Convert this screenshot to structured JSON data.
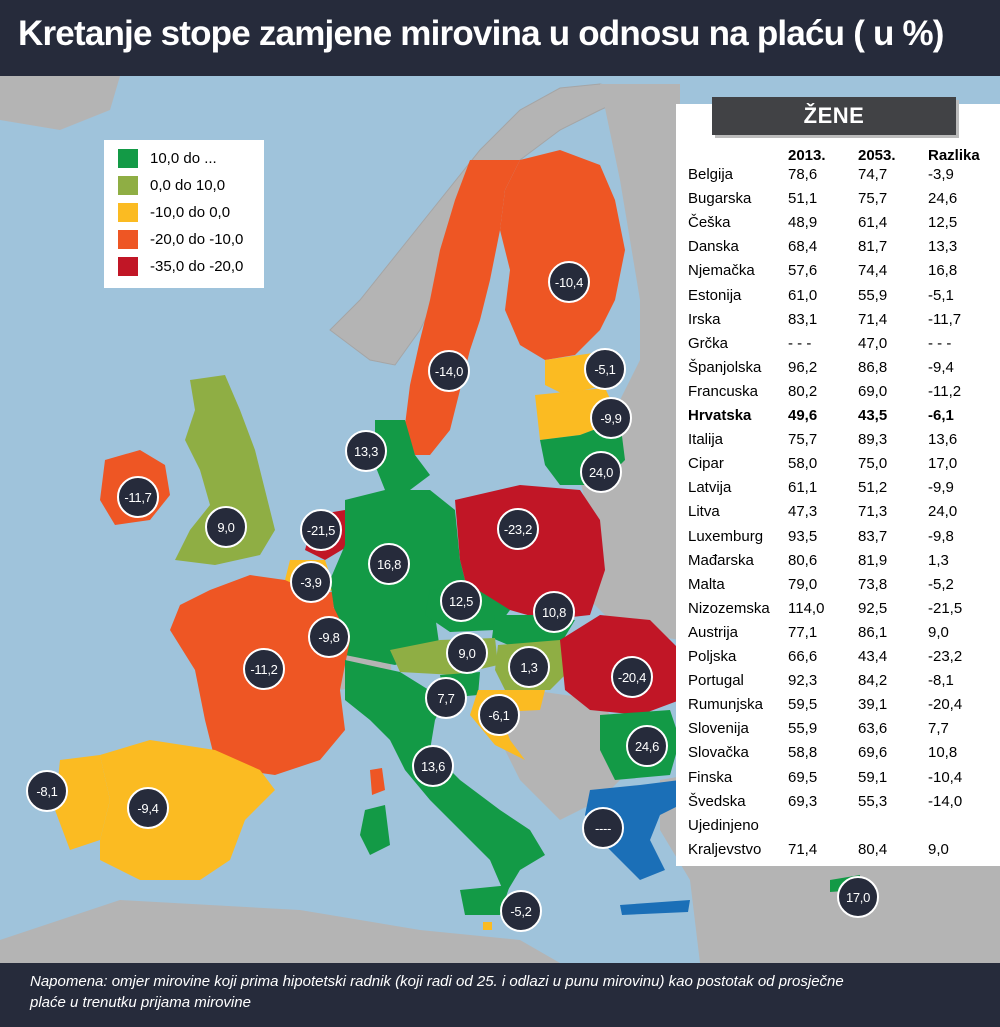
{
  "title": "Kretanje stope zamjene mirovina u odnosu na plaću ( u %)",
  "footnote": "Napomena: omjer mirovine koji prima hipotetski radnik (koji radi od 25. i odlazi u punu mirovinu) kao postotak od prosječne plaće u trenutku prijama mirovine",
  "legend": [
    {
      "label": "10,0 do ...",
      "color": "#139a46"
    },
    {
      "label": "0,0 do 10,0",
      "color": "#8fae44"
    },
    {
      "label": "-10,0 do 0,0",
      "color": "#fbbb22"
    },
    {
      "label": "-20,0 do -10,0",
      "color": "#ee5624"
    },
    {
      "label": "-35,0 do -20,0",
      "color": "#c11626"
    }
  ],
  "map_labels": {
    "finland": "-10,4",
    "sweden": "-14,0",
    "estonia": "-5,1",
    "latvia": "-9,9",
    "lithuania": "24,0",
    "denmark": "13,3",
    "ireland": "-11,7",
    "uk": "9,0",
    "netherlands": "-21,5",
    "belgium": "-3,9",
    "luxembourg": "-9,8",
    "germany": "16,8",
    "poland": "-23,2",
    "czech": "12,5",
    "slovakia": "10,8",
    "austria": "9,0",
    "hungary": "1,3",
    "romania": "-20,4",
    "slovenia": "7,7",
    "croatia": "-6,1",
    "bulgaria": "24,6",
    "france": "-11,2",
    "italy": "13,6",
    "portugal": "-8,1",
    "spain": "-9,4",
    "greece": "----",
    "malta": "-5,2",
    "cyprus": "17,0"
  },
  "table": {
    "panel_title": "ŽENE",
    "headers": [
      "",
      "2013.",
      "2053.",
      "Razlika"
    ],
    "rows": [
      {
        "country": "Belgija",
        "y2013": "78,6",
        "y2053": "74,7",
        "diff": "-3,9"
      },
      {
        "country": "Bugarska",
        "y2013": "51,1",
        "y2053": "75,7",
        "diff": "24,6"
      },
      {
        "country": "Češka",
        "y2013": "48,9",
        "y2053": "61,4",
        "diff": "12,5"
      },
      {
        "country": "Danska",
        "y2013": "68,4",
        "y2053": "81,7",
        "diff": "13,3"
      },
      {
        "country": "Njemačka",
        "y2013": "57,6",
        "y2053": "74,4",
        "diff": "16,8"
      },
      {
        "country": "Estonija",
        "y2013": "61,0",
        "y2053": "55,9",
        "diff": "-5,1"
      },
      {
        "country": "Irska",
        "y2013": "83,1",
        "y2053": "71,4",
        "diff": "-11,7"
      },
      {
        "country": "Grčka",
        "y2013": "- - -",
        "y2053": "47,0",
        "diff": "- - -"
      },
      {
        "country": "Španjolska",
        "y2013": "96,2",
        "y2053": "86,8",
        "diff": "-9,4"
      },
      {
        "country": "Francuska",
        "y2013": "80,2",
        "y2053": "69,0",
        "diff": "-11,2"
      },
      {
        "country": "Hrvatska",
        "y2013": "49,6",
        "y2053": "43,5",
        "diff": "-6,1",
        "bold": true
      },
      {
        "country": "Italija",
        "y2013": "75,7",
        "y2053": "89,3",
        "diff": "13,6"
      },
      {
        "country": "Cipar",
        "y2013": "58,0",
        "y2053": "75,0",
        "diff": "17,0"
      },
      {
        "country": "Latvija",
        "y2013": "61,1",
        "y2053": "51,2",
        "diff": "-9,9"
      },
      {
        "country": "Litva",
        "y2013": "47,3",
        "y2053": "71,3",
        "diff": "24,0"
      },
      {
        "country": "Luxemburg",
        "y2013": "93,5",
        "y2053": "83,7",
        "diff": "-9,8"
      },
      {
        "country": "Mađarska",
        "y2013": "80,6",
        "y2053": "81,9",
        "diff": "1,3"
      },
      {
        "country": "Malta",
        "y2013": "79,0",
        "y2053": "73,8",
        "diff": "-5,2"
      },
      {
        "country": "Nizozemska",
        "y2013": "114,0",
        "y2053": "92,5",
        "diff": "-21,5"
      },
      {
        "country": "Austrija",
        "y2013": "77,1",
        "y2053": "86,1",
        "diff": "9,0"
      },
      {
        "country": "Poljska",
        "y2013": "66,6",
        "y2053": "43,4",
        "diff": "-23,2"
      },
      {
        "country": "Portugal",
        "y2013": "92,3",
        "y2053": "84,2",
        "diff": "-8,1"
      },
      {
        "country": "Rumunjska",
        "y2013": "59,5",
        "y2053": "39,1",
        "diff": "-20,4"
      },
      {
        "country": "Slovenija",
        "y2013": "55,9",
        "y2053": "63,6",
        "diff": "7,7"
      },
      {
        "country": "Slovačka",
        "y2013": "58,8",
        "y2053": "69,6",
        "diff": "10,8"
      },
      {
        "country": "Finska",
        "y2013": "69,5",
        "y2053": "59,1",
        "diff": "-10,4"
      },
      {
        "country": "Švedska",
        "y2013": "69,3",
        "y2053": "55,3",
        "diff": "-14,0"
      },
      {
        "country": "Ujedinjeno",
        "y2013": "",
        "y2053": "",
        "diff": ""
      },
      {
        "country": "Kraljevstvo",
        "y2013": "71,4",
        "y2053": "80,4",
        "diff": "9,0"
      }
    ]
  },
  "colors": {
    "header_bg": "#262b3b",
    "sea": "#9fc3db",
    "non_eu_land": "#b4b4b4",
    "dark_green": "#139a46",
    "light_green": "#8fae44",
    "yellow": "#fbbb22",
    "orange": "#ee5624",
    "red": "#c11626",
    "greece_blue": "#1b6fb7"
  }
}
